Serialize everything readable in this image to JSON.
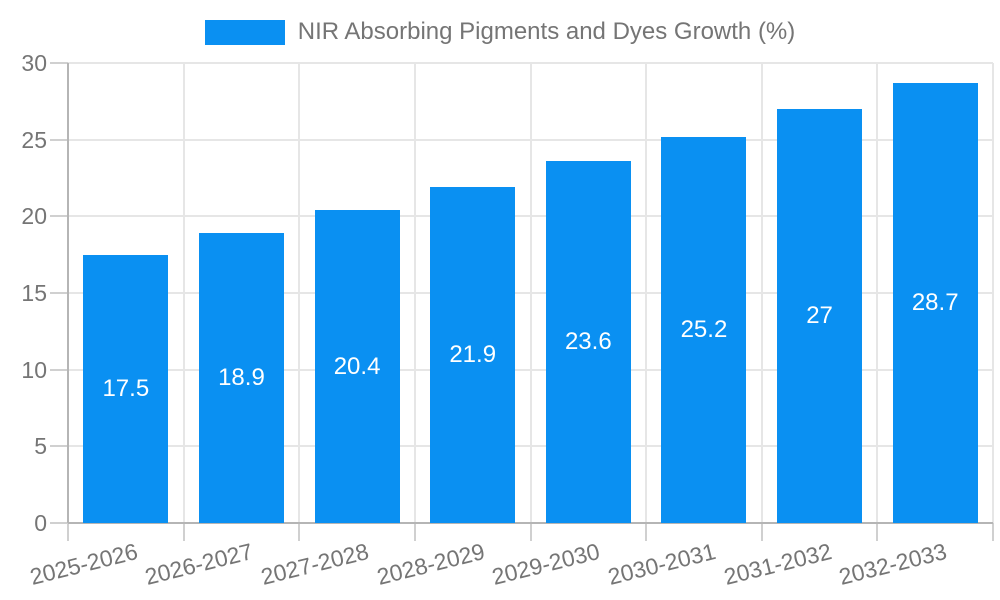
{
  "legend": {
    "label": "NIR Absorbing Pigments and Dyes Growth (%)"
  },
  "chart_data": {
    "type": "bar",
    "title": "NIR Absorbing Pigments and Dyes Growth (%)",
    "categories": [
      "2025-2026",
      "2026-2027",
      "2027-2028",
      "2028-2029",
      "2029-2030",
      "2030-2031",
      "2031-2032",
      "2032-2033"
    ],
    "values": [
      17.5,
      18.9,
      20.4,
      21.9,
      23.6,
      25.2,
      27,
      28.7
    ],
    "value_labels": [
      "17.5",
      "18.9",
      "20.4",
      "21.9",
      "23.6",
      "25.2",
      "27",
      "28.7"
    ],
    "xlabel": "",
    "ylabel": "",
    "ylim": [
      0,
      30
    ],
    "yticks": [
      0,
      5,
      10,
      15,
      20,
      25,
      30
    ],
    "grid": true,
    "legend_position": "top-center",
    "bar_color": "#0a90f2",
    "value_label_color": "#ffffff",
    "axis_text_color": "#757575"
  }
}
